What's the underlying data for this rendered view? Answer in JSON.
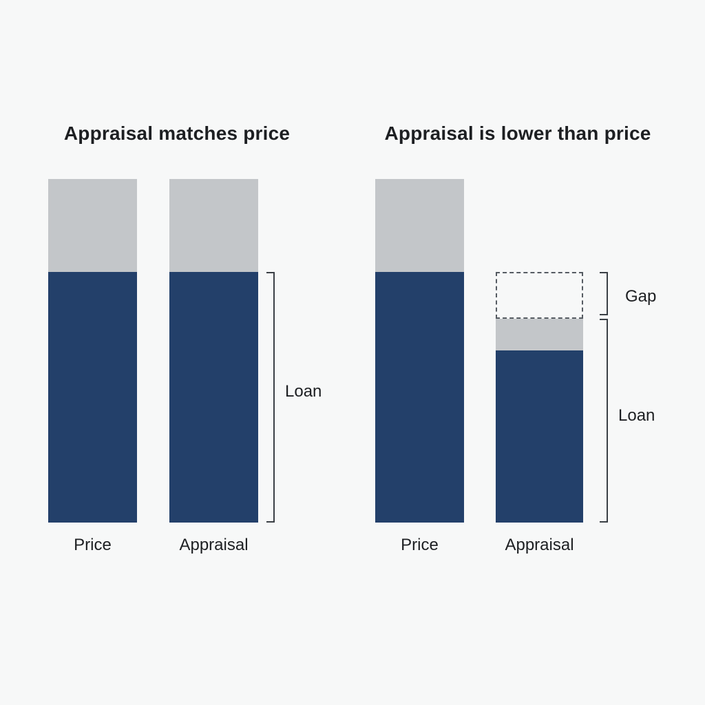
{
  "panels": [
    {
      "title": "Appraisal matches price",
      "bars": [
        {
          "label": "Price",
          "equity": 1,
          "loan": 1
        },
        {
          "label": "Appraisal",
          "equity": 1,
          "loan": 1
        }
      ],
      "loan_label": "Loan"
    },
    {
      "title": "Appraisal is lower than price",
      "bars": [
        {
          "label": "Price",
          "equity": 1,
          "loan": 1
        },
        {
          "label": "Appraisal",
          "equity": 1,
          "loan": 1,
          "gap": 1
        }
      ],
      "gap_label": "Gap",
      "loan_label": "Loan"
    }
  ],
  "colors": {
    "loan": "#23406a",
    "equity": "#c3c6c9",
    "background": "#f7f8f8"
  }
}
